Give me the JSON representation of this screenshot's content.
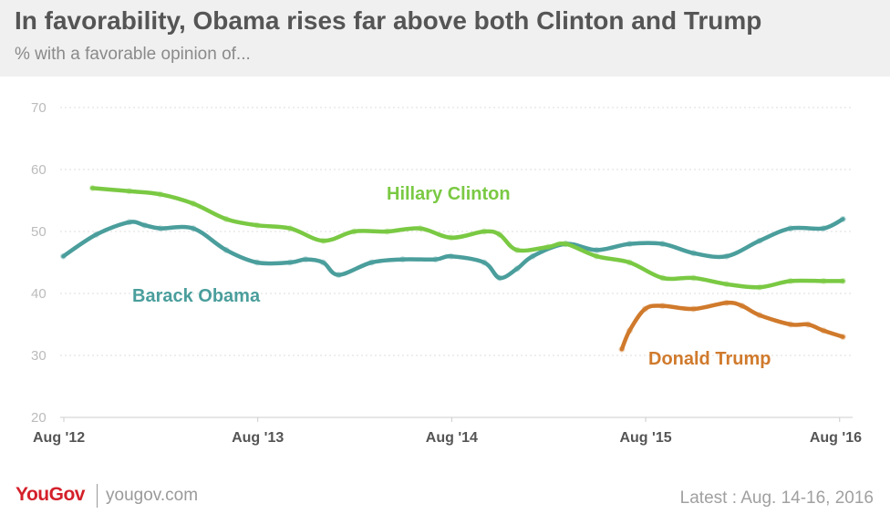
{
  "header": {
    "title": "In favorability, Obama rises far above both Clinton and Trump",
    "subtitle": "% with a favorable opinion of..."
  },
  "footer": {
    "logo": "YouGov",
    "url": "yougov.com",
    "latest": "Latest : Aug. 14-16, 2016"
  },
  "chart_data": {
    "type": "line",
    "title": "In favorability, Obama rises far above both Clinton and Trump",
    "subtitle": "% with a favorable opinion of...",
    "xlabel": "",
    "ylabel": "",
    "ylim": [
      20,
      70
    ],
    "yticks": [
      20,
      30,
      40,
      50,
      60,
      70
    ],
    "xlim": [
      2012.583,
      2016.65
    ],
    "xticks": [
      {
        "value": 2012.583,
        "label": "Aug '12"
      },
      {
        "value": 2013.583,
        "label": "Aug '13"
      },
      {
        "value": 2014.583,
        "label": "Aug '14"
      },
      {
        "value": 2015.583,
        "label": "Aug '15"
      },
      {
        "value": 2016.583,
        "label": "Aug '16"
      }
    ],
    "grid": true,
    "legend": "direct labels",
    "series": [
      {
        "name": "Barack Obama",
        "color": "#4a9e9c",
        "x": [
          2012.58,
          2012.75,
          2012.92,
          2013.0,
          2013.08,
          2013.25,
          2013.42,
          2013.58,
          2013.75,
          2013.83,
          2013.92,
          2014.0,
          2014.17,
          2014.33,
          2014.5,
          2014.58,
          2014.75,
          2014.83,
          2014.92,
          2015.0,
          2015.17,
          2015.33,
          2015.5,
          2015.67,
          2015.83,
          2016.0,
          2016.17,
          2016.33,
          2016.5,
          2016.6
        ],
        "values": [
          46,
          49.5,
          51.5,
          51,
          50.5,
          50.5,
          47,
          45,
          45,
          45.5,
          45,
          43,
          45,
          45.5,
          45.5,
          46,
          45,
          42.5,
          44,
          46,
          48,
          47,
          48,
          48,
          46.5,
          46,
          48.5,
          50.5,
          50.5,
          52
        ]
      },
      {
        "name": "Hillary Clinton",
        "color": "#7ac943",
        "x": [
          2012.73,
          2012.92,
          2013.08,
          2013.25,
          2013.42,
          2013.58,
          2013.75,
          2013.92,
          2014.08,
          2014.25,
          2014.42,
          2014.58,
          2014.75,
          2014.83,
          2014.92,
          2015.08,
          2015.17,
          2015.33,
          2015.5,
          2015.67,
          2015.83,
          2016.0,
          2016.17,
          2016.33,
          2016.5,
          2016.6
        ],
        "values": [
          57,
          56.5,
          56,
          54.5,
          52,
          51,
          50.5,
          48.5,
          50,
          50,
          50.5,
          49,
          50,
          49.5,
          47,
          47.5,
          48,
          46,
          45,
          42.5,
          42.5,
          41.5,
          41,
          42,
          42,
          42
        ]
      },
      {
        "name": "Donald Trump",
        "color": "#d07a2c",
        "x": [
          2015.46,
          2015.5,
          2015.58,
          2015.67,
          2015.83,
          2016.0,
          2016.08,
          2016.17,
          2016.33,
          2016.42,
          2016.5,
          2016.6
        ],
        "values": [
          31,
          34,
          37.5,
          38,
          37.5,
          38.5,
          38,
          36.5,
          35,
          35,
          34,
          33
        ]
      }
    ]
  }
}
